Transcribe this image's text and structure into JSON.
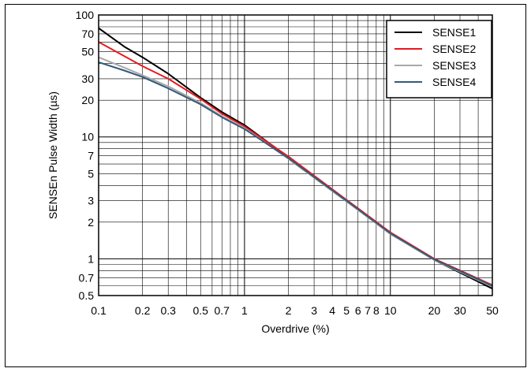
{
  "chart_data": {
    "type": "line",
    "xlabel": "Overdrive (%)",
    "ylabel": "SENSEn Pulse Width (µs)",
    "x_scale": "log",
    "y_scale": "log",
    "xlim": [
      0.1,
      50
    ],
    "ylim": [
      0.5,
      100
    ],
    "grid": true,
    "legend_position": "top-right",
    "x_tick_labels": [
      {
        "v": 0.1,
        "label": "0.1"
      },
      {
        "v": 0.2,
        "label": "0.2"
      },
      {
        "v": 0.3,
        "label": "0.3"
      },
      {
        "v": 0.5,
        "label": "0.5"
      },
      {
        "v": 0.7,
        "label": "0.7"
      },
      {
        "v": 1,
        "label": "1"
      },
      {
        "v": 2,
        "label": "2"
      },
      {
        "v": 3,
        "label": "3"
      },
      {
        "v": 4,
        "label": "4"
      },
      {
        "v": 5,
        "label": "5"
      },
      {
        "v": 6,
        "label": "6"
      },
      {
        "v": 7,
        "label": "7"
      },
      {
        "v": 8,
        "label": "8"
      },
      {
        "v": 10,
        "label": "10"
      },
      {
        "v": 20,
        "label": "20"
      },
      {
        "v": 30,
        "label": "30"
      },
      {
        "v": 50,
        "label": "50"
      }
    ],
    "y_tick_labels": [
      {
        "v": 0.5,
        "label": "0.5"
      },
      {
        "v": 0.7,
        "label": "0.7"
      },
      {
        "v": 1,
        "label": "1"
      },
      {
        "v": 2,
        "label": "2"
      },
      {
        "v": 3,
        "label": "3"
      },
      {
        "v": 5,
        "label": "5"
      },
      {
        "v": 7,
        "label": "7"
      },
      {
        "v": 10,
        "label": "10"
      },
      {
        "v": 20,
        "label": "20"
      },
      {
        "v": 30,
        "label": "30"
      },
      {
        "v": 50,
        "label": "50"
      },
      {
        "v": 70,
        "label": "70"
      },
      {
        "v": 100,
        "label": "100"
      }
    ],
    "series": [
      {
        "name": "SENSE1",
        "color": "#000000",
        "x": [
          0.1,
          0.15,
          0.2,
          0.3,
          0.5,
          0.7,
          1,
          2,
          5,
          10,
          20,
          50
        ],
        "y": [
          78,
          55,
          45,
          33,
          21,
          16,
          12.5,
          6.8,
          3.0,
          1.6,
          0.98,
          0.57
        ]
      },
      {
        "name": "SENSE2",
        "color": "#e8191f",
        "x": [
          0.1,
          0.15,
          0.2,
          0.3,
          0.5,
          0.7,
          1,
          2,
          5,
          10,
          20,
          50
        ],
        "y": [
          60,
          46,
          38,
          30,
          20.5,
          15.5,
          12.2,
          6.9,
          3.05,
          1.65,
          1.0,
          0.61
        ]
      },
      {
        "name": "SENSE3",
        "color": "#a8a8a8",
        "x": [
          0.1,
          0.15,
          0.2,
          0.3,
          0.5,
          0.7,
          1,
          2,
          5,
          10,
          20,
          50
        ],
        "y": [
          45,
          37,
          32,
          26,
          19,
          14.8,
          11.8,
          6.6,
          2.95,
          1.6,
          0.98,
          0.59
        ]
      },
      {
        "name": "SENSE4",
        "color": "#335a7a",
        "x": [
          0.1,
          0.15,
          0.2,
          0.3,
          0.5,
          0.7,
          1,
          2,
          5,
          10,
          20,
          50
        ],
        "y": [
          41,
          35,
          31,
          25,
          18.5,
          14.5,
          11.6,
          6.7,
          3.0,
          1.62,
          0.99,
          0.6
        ]
      }
    ]
  }
}
